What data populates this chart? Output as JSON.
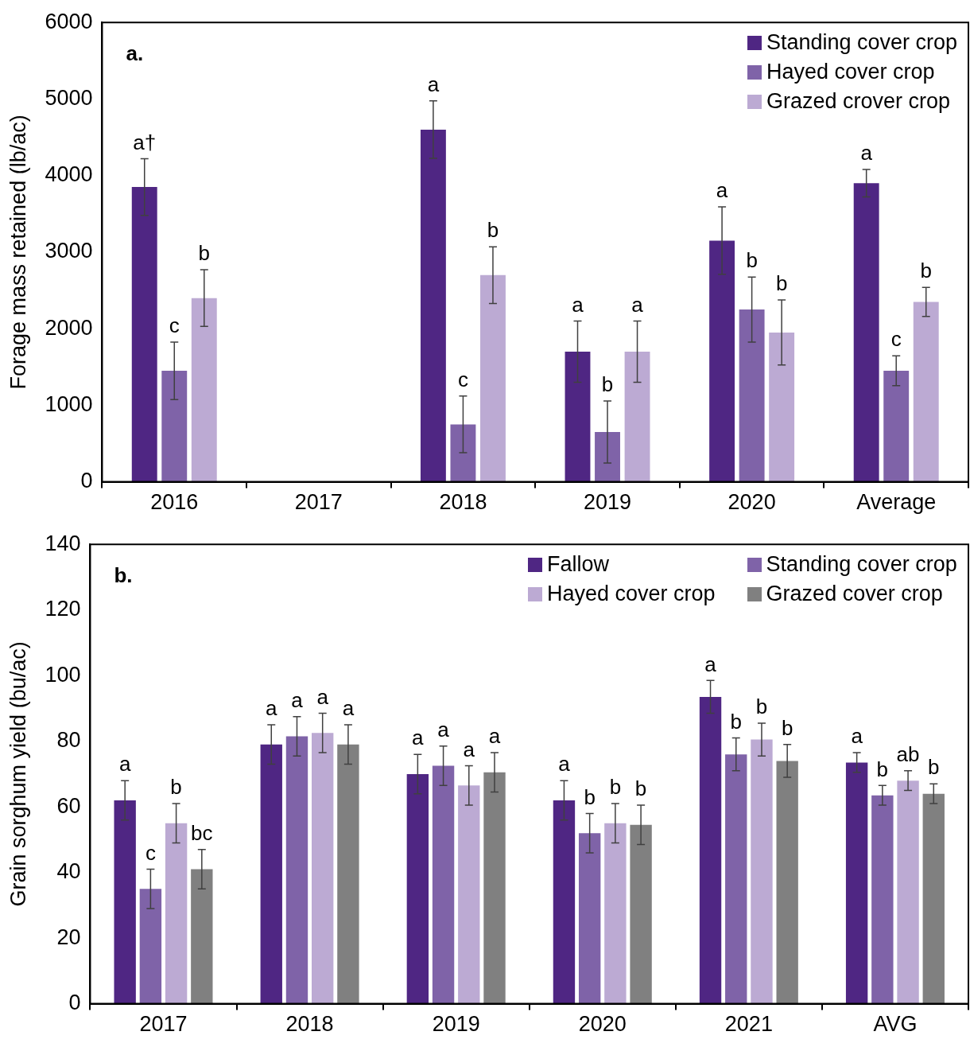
{
  "chart_data": [
    {
      "type": "bar",
      "ylabel": "Forage mass retained (lb/ac)",
      "annotations": [
        "a."
      ],
      "categories": [
        "2016",
        "2017",
        "2018",
        "2019",
        "2020",
        "Average"
      ],
      "ylim": [
        0,
        6000
      ],
      "yticks": [
        0,
        1000,
        2000,
        3000,
        4000,
        5000,
        6000
      ],
      "legend": "top right",
      "series": [
        {
          "name": "Standing cover crop",
          "color": "#4f2683",
          "values": [
            3850,
            null,
            4600,
            1700,
            3150,
            3900
          ],
          "errors": [
            370,
            null,
            375,
            400,
            440,
            180
          ],
          "value_labels": [
            "a†",
            null,
            "a",
            "a",
            "a",
            "a"
          ]
        },
        {
          "name": "Hayed cover crop",
          "color": "#7f63a8",
          "values": [
            1450,
            null,
            750,
            650,
            2250,
            1450
          ],
          "errors": [
            375,
            null,
            370,
            405,
            425,
            195
          ],
          "value_labels": [
            "c",
            null,
            "c",
            "b",
            "b",
            "c"
          ]
        },
        {
          "name": "Grazed crover crop",
          "color": "#bcaad3",
          "values": [
            2400,
            null,
            2700,
            1700,
            1950,
            2350
          ],
          "errors": [
            370,
            null,
            370,
            400,
            425,
            190
          ],
          "value_labels": [
            "b",
            null,
            "b",
            "a",
            "b",
            "b"
          ]
        }
      ]
    },
    {
      "type": "bar",
      "ylabel": "Grain sorghum yield (bu/ac)",
      "annotations": [
        "b."
      ],
      "categories": [
        "2017",
        "2018",
        "2019",
        "2020",
        "2021",
        "AVG"
      ],
      "ylim": [
        0,
        140
      ],
      "yticks": [
        0,
        20,
        40,
        60,
        80,
        100,
        120,
        140
      ],
      "legend": "top right",
      "series": [
        {
          "name": "Fallow",
          "color": "#4f2683",
          "values": [
            62,
            79,
            70,
            62,
            93.5,
            73.5
          ],
          "errors": [
            6,
            6,
            6,
            6,
            5,
            3
          ],
          "value_labels": [
            "a",
            "a",
            "a",
            "a",
            "a",
            "a"
          ]
        },
        {
          "name": "Standing cover crop",
          "color": "#7f63a8",
          "values": [
            35,
            81.5,
            72.5,
            52,
            76,
            63.5
          ],
          "errors": [
            6,
            6,
            6,
            6,
            5,
            3
          ],
          "value_labels": [
            "c",
            "a",
            "a",
            "b",
            "b",
            "b"
          ]
        },
        {
          "name": "Hayed cover crop",
          "color": "#bcaad3",
          "values": [
            55,
            82.5,
            66.5,
            55,
            80.5,
            68
          ],
          "errors": [
            6,
            6,
            6,
            6,
            5,
            3
          ],
          "value_labels": [
            "b",
            "a",
            "a",
            "b",
            "b",
            "ab"
          ]
        },
        {
          "name": "Grazed cover crop",
          "color": "#808080",
          "values": [
            41,
            79,
            70.5,
            54.5,
            74,
            64
          ],
          "errors": [
            6,
            6,
            6,
            6,
            5,
            3
          ],
          "value_labels": [
            "bc",
            "a",
            "a",
            "b",
            "b",
            "b"
          ]
        }
      ]
    }
  ]
}
